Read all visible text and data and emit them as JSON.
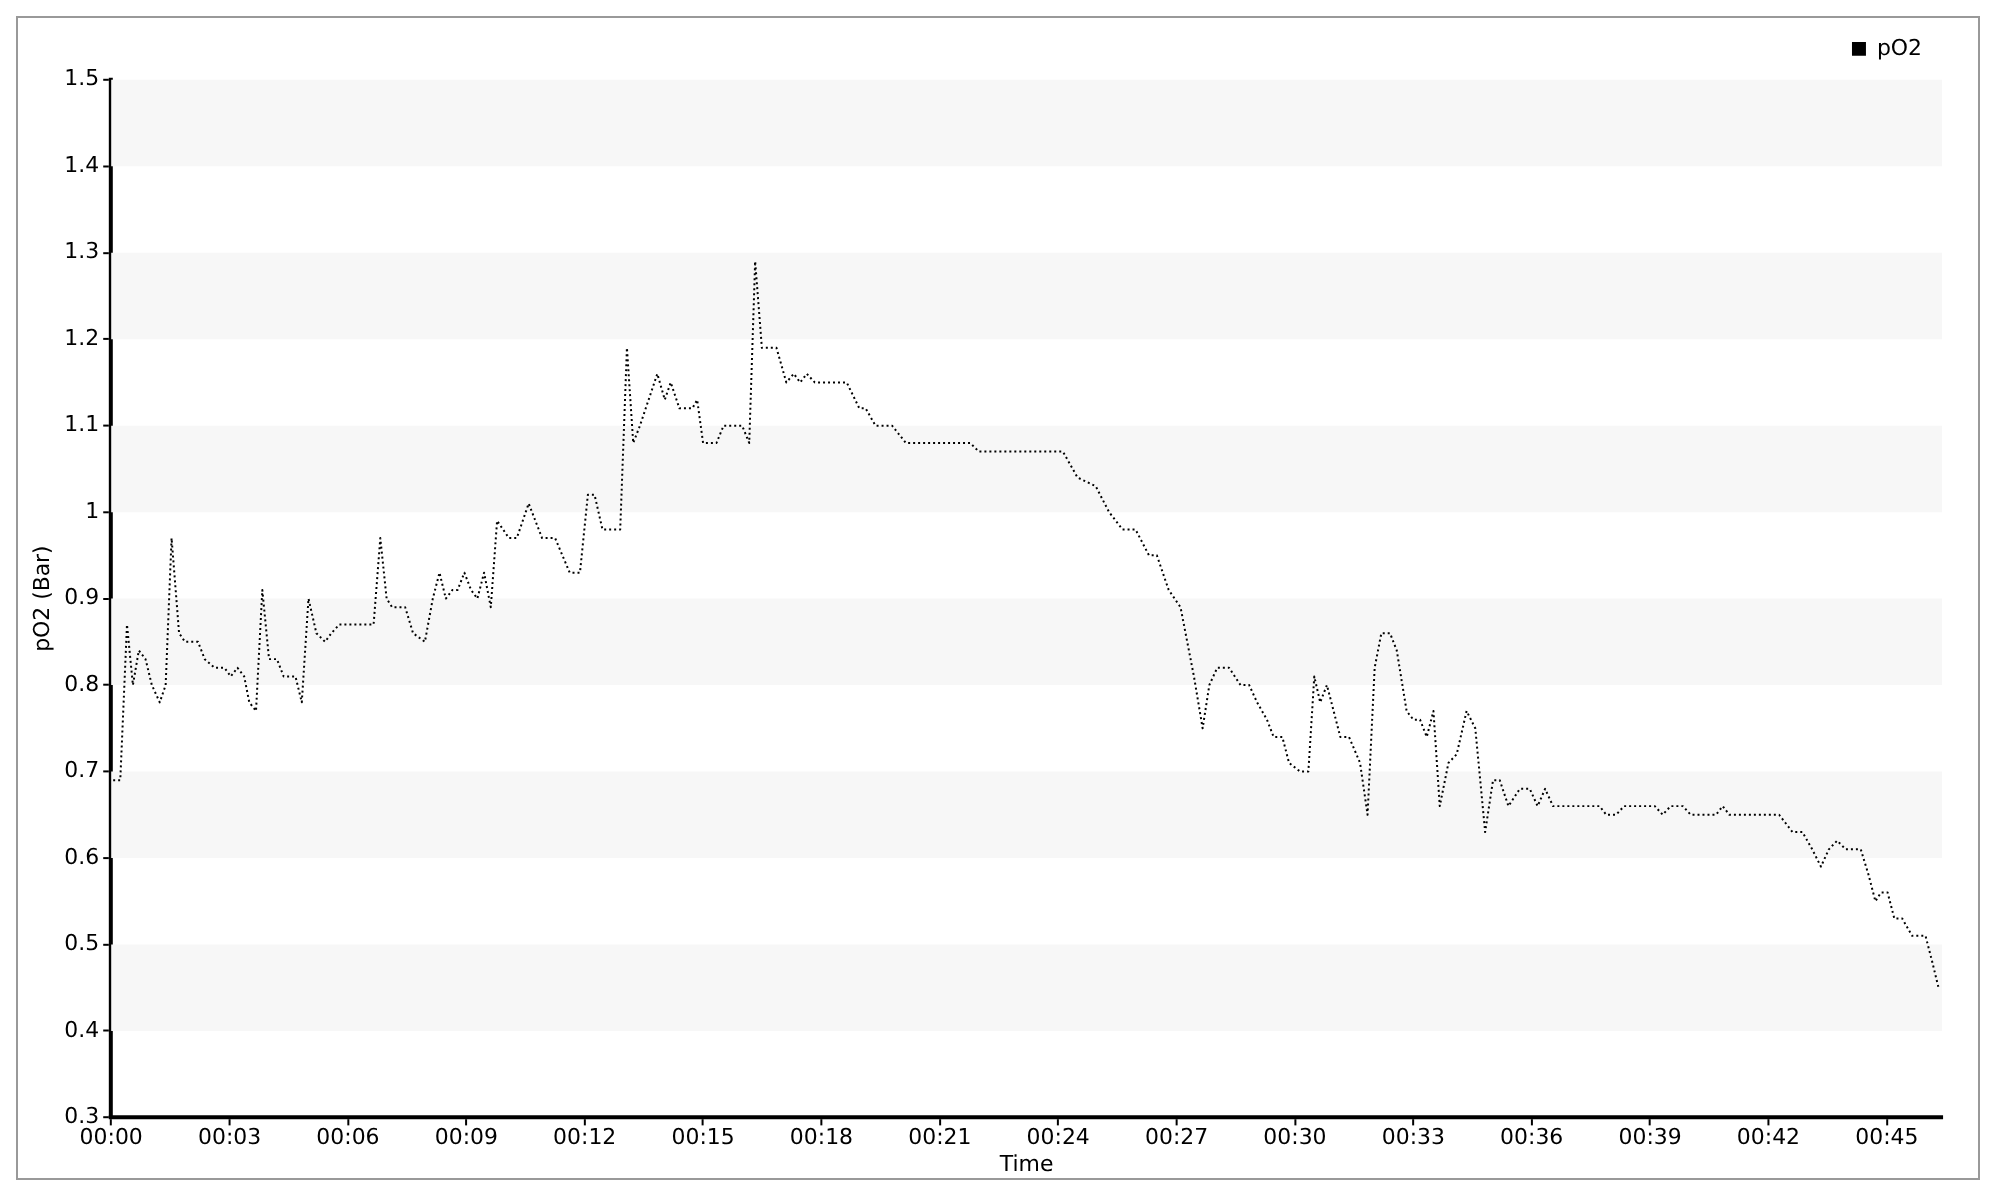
{
  "chart_data": {
    "type": "line",
    "xlabel": "Time",
    "ylabel": "pO2 (Bar)",
    "xlim": [
      0,
      46.4
    ],
    "ylim": [
      0.3,
      1.5
    ],
    "xticks": [
      {
        "value": 0,
        "label": "00:00"
      },
      {
        "value": 3,
        "label": "00:03"
      },
      {
        "value": 6,
        "label": "00:06"
      },
      {
        "value": 9,
        "label": "00:09"
      },
      {
        "value": 12,
        "label": "00:12"
      },
      {
        "value": 15,
        "label": "00:15"
      },
      {
        "value": 18,
        "label": "00:18"
      },
      {
        "value": 21,
        "label": "00:21"
      },
      {
        "value": 24,
        "label": "00:24"
      },
      {
        "value": 27,
        "label": "00:27"
      },
      {
        "value": 30,
        "label": "00:30"
      },
      {
        "value": 33,
        "label": "00:33"
      },
      {
        "value": 36,
        "label": "00:36"
      },
      {
        "value": 39,
        "label": "00:39"
      },
      {
        "value": 42,
        "label": "00:42"
      },
      {
        "value": 45,
        "label": "00:45"
      }
    ],
    "yticks": [
      0.3,
      0.4,
      0.5,
      0.6,
      0.7,
      0.8,
      0.9,
      1,
      1.1,
      1.2,
      1.3,
      1.4,
      1.5
    ],
    "grid": false,
    "legend": "top right",
    "marker": "none",
    "line_style": "dotted",
    "bands": [
      {
        "axis": "y",
        "from": 0.4,
        "to": 0.5,
        "color": "#f7f7f7"
      },
      {
        "axis": "y",
        "from": 0.6,
        "to": 0.7,
        "color": "#f7f7f7"
      },
      {
        "axis": "y",
        "from": 0.8,
        "to": 0.9,
        "color": "#f7f7f7"
      },
      {
        "axis": "y",
        "from": 1.0,
        "to": 1.1,
        "color": "#f7f7f7"
      },
      {
        "axis": "y",
        "from": 1.2,
        "to": 1.3,
        "color": "#f7f7f7"
      },
      {
        "axis": "y",
        "from": 1.4,
        "to": 1.5,
        "color": "#f7f7f7"
      }
    ],
    "series": [
      {
        "name": "pO2",
        "color": "#000000",
        "x": [
          0.05,
          0.23,
          0.4,
          0.55,
          0.7,
          0.87,
          1.03,
          1.23,
          1.38,
          1.53,
          1.72,
          1.87,
          2.2,
          2.37,
          2.62,
          2.87,
          3.03,
          3.2,
          3.37,
          3.5,
          3.67,
          3.83,
          4.0,
          4.2,
          4.37,
          4.67,
          4.83,
          5.0,
          5.2,
          5.42,
          5.58,
          5.78,
          6.65,
          6.82,
          6.98,
          7.12,
          7.45,
          7.65,
          7.95,
          8.15,
          8.32,
          8.48,
          8.65,
          8.78,
          8.95,
          9.12,
          9.28,
          9.45,
          9.62,
          9.78,
          10.08,
          10.28,
          10.58,
          10.92,
          11.25,
          11.62,
          11.88,
          12.08,
          12.25,
          12.45,
          12.9,
          13.07,
          13.23,
          13.4,
          13.84,
          14.03,
          14.18,
          14.4,
          14.73,
          14.85,
          15.0,
          15.34,
          15.52,
          15.99,
          16.17,
          16.32,
          16.49,
          16.86,
          17.11,
          17.3,
          17.46,
          17.63,
          17.83,
          18.64,
          18.96,
          19.12,
          19.37,
          19.79,
          20.14,
          21.77,
          21.99,
          24.12,
          24.49,
          24.95,
          25.29,
          25.63,
          25.96,
          26.3,
          26.5,
          26.8,
          27.1,
          27.44,
          27.66,
          27.83,
          28.03,
          28.33,
          28.62,
          28.84,
          29.04,
          29.29,
          29.46,
          29.68,
          29.85,
          30.13,
          30.34,
          30.49,
          30.64,
          30.81,
          31.15,
          31.37,
          31.65,
          31.84,
          32.02,
          32.19,
          32.41,
          32.58,
          32.83,
          33.0,
          33.17,
          33.34,
          33.51,
          33.67,
          33.89,
          34.1,
          34.35,
          34.57,
          34.82,
          35.02,
          35.19,
          35.41,
          35.7,
          35.95,
          36.15,
          36.34,
          36.54,
          37.72,
          37.89,
          38.14,
          38.34,
          39.12,
          39.32,
          39.52,
          39.83,
          40.03,
          40.67,
          40.84,
          41.01,
          42.27,
          42.61,
          42.86,
          43.11,
          43.33,
          43.53,
          43.74,
          43.96,
          44.34,
          44.54,
          44.71,
          44.85,
          45.02,
          45.19,
          45.39,
          45.64,
          45.98,
          46.15,
          46.31
        ],
        "values": [
          0.69,
          0.69,
          0.87,
          0.8,
          0.84,
          0.83,
          0.8,
          0.78,
          0.8,
          0.97,
          0.86,
          0.85,
          0.85,
          0.83,
          0.82,
          0.82,
          0.81,
          0.82,
          0.81,
          0.78,
          0.77,
          0.91,
          0.83,
          0.83,
          0.81,
          0.81,
          0.78,
          0.9,
          0.86,
          0.85,
          0.86,
          0.87,
          0.87,
          0.97,
          0.9,
          0.89,
          0.89,
          0.86,
          0.85,
          0.9,
          0.93,
          0.9,
          0.91,
          0.91,
          0.93,
          0.91,
          0.9,
          0.93,
          0.89,
          0.99,
          0.97,
          0.97,
          1.01,
          0.97,
          0.97,
          0.93,
          0.93,
          1.02,
          1.02,
          0.98,
          0.98,
          1.19,
          1.08,
          1.1,
          1.16,
          1.13,
          1.15,
          1.12,
          1.12,
          1.13,
          1.08,
          1.08,
          1.1,
          1.1,
          1.08,
          1.29,
          1.19,
          1.19,
          1.15,
          1.16,
          1.15,
          1.16,
          1.15,
          1.15,
          1.12,
          1.12,
          1.1,
          1.1,
          1.08,
          1.08,
          1.07,
          1.07,
          1.04,
          1.03,
          1.0,
          0.98,
          0.98,
          0.95,
          0.95,
          0.91,
          0.89,
          0.81,
          0.75,
          0.8,
          0.82,
          0.82,
          0.8,
          0.8,
          0.78,
          0.76,
          0.74,
          0.74,
          0.71,
          0.7,
          0.7,
          0.81,
          0.78,
          0.8,
          0.74,
          0.74,
          0.71,
          0.65,
          0.82,
          0.86,
          0.86,
          0.84,
          0.77,
          0.76,
          0.76,
          0.74,
          0.77,
          0.66,
          0.71,
          0.72,
          0.77,
          0.75,
          0.63,
          0.69,
          0.69,
          0.66,
          0.68,
          0.68,
          0.66,
          0.68,
          0.66,
          0.66,
          0.65,
          0.65,
          0.66,
          0.66,
          0.65,
          0.66,
          0.66,
          0.65,
          0.65,
          0.66,
          0.65,
          0.65,
          0.63,
          0.63,
          0.61,
          0.59,
          0.61,
          0.62,
          0.61,
          0.61,
          0.58,
          0.55,
          0.56,
          0.56,
          0.53,
          0.53,
          0.51,
          0.51,
          0.48,
          0.45
        ]
      }
    ]
  }
}
